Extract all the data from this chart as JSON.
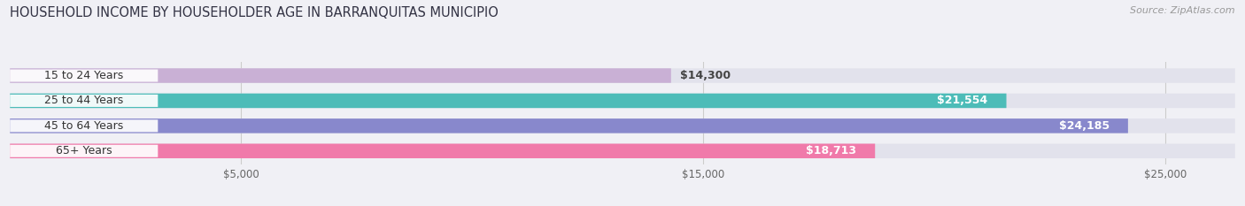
{
  "title": "HOUSEHOLD INCOME BY HOUSEHOLDER AGE IN BARRANQUITAS MUNICIPIO",
  "source": "Source: ZipAtlas.com",
  "categories": [
    "15 to 24 Years",
    "25 to 44 Years",
    "45 to 64 Years",
    "65+ Years"
  ],
  "values": [
    14300,
    21554,
    24185,
    18713
  ],
  "bar_colors": [
    "#c9b0d5",
    "#4dbcb8",
    "#8888cc",
    "#f07aaa"
  ],
  "label_colors": [
    "#333333",
    "#ffffff",
    "#ffffff",
    "#ffffff"
  ],
  "value_labels": [
    "$14,300",
    "$21,554",
    "$24,185",
    "$18,713"
  ],
  "xlim": [
    0,
    26500
  ],
  "xticks": [
    5000,
    15000,
    25000
  ],
  "xticklabels": [
    "$5,000",
    "$15,000",
    "$25,000"
  ],
  "background_color": "#f0f0f5",
  "bar_background_color": "#e2e2ec",
  "title_fontsize": 10.5,
  "source_fontsize": 8,
  "label_fontsize": 9,
  "tick_fontsize": 8.5,
  "bar_height": 0.58
}
